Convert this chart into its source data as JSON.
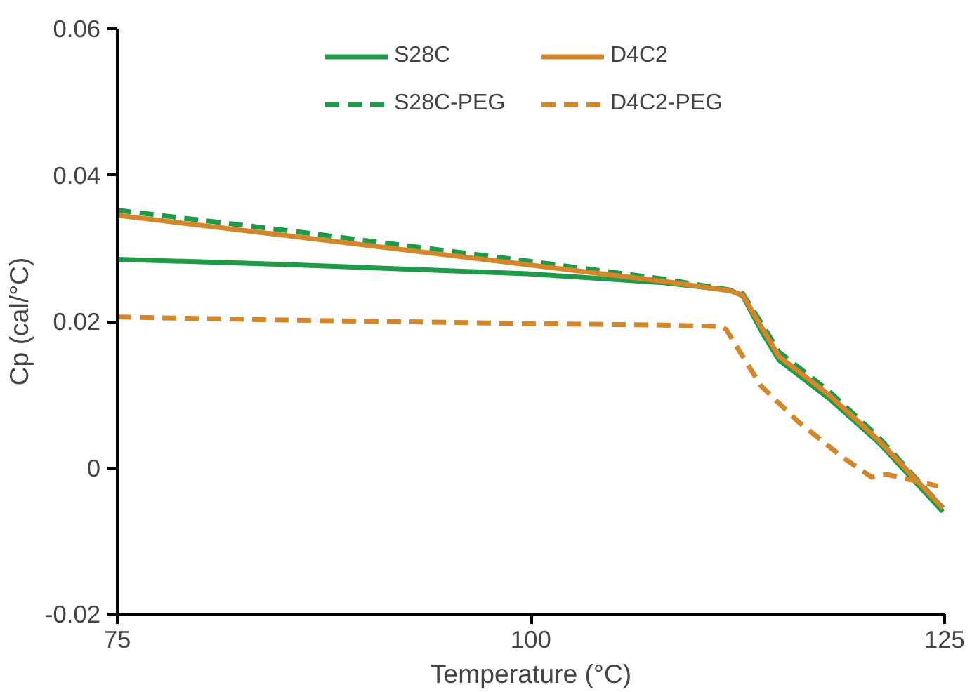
{
  "chart_data": {
    "type": "line",
    "xlabel": "Temperature (°C)",
    "ylabel": "Cp (cal/°C)",
    "xlim": [
      75,
      125
    ],
    "ylim": [
      -0.02,
      0.06
    ],
    "xticks": [
      75,
      100,
      125
    ],
    "yticks": [
      {
        "value": -0.02,
        "label": "-0.02"
      },
      {
        "value": 0,
        "label": "0"
      },
      {
        "value": 0.02,
        "label": "0.02"
      },
      {
        "value": 0.04,
        "label": "0.04"
      },
      {
        "value": 0.06,
        "label": "0.06"
      }
    ],
    "grid": false,
    "legend": "top",
    "marker": "none",
    "series": [
      {
        "name": "S28C",
        "color": "#1e9a48",
        "line_style": "solid",
        "x": [
          75,
          85,
          100,
          108,
          112,
          112.8,
          114,
          115,
          118,
          121,
          124.9
        ],
        "values": [
          0.0285,
          0.0278,
          0.0265,
          0.0253,
          0.0243,
          0.0235,
          0.0184,
          0.0147,
          0.0095,
          0.0035,
          -0.006
        ]
      },
      {
        "name": "S28C-PEG",
        "color": "#1e9a48",
        "line_style": "dashed",
        "x": [
          75,
          85,
          100,
          108,
          112,
          112.8,
          114,
          115,
          118,
          121,
          124.9
        ],
        "values": [
          0.0352,
          0.0325,
          0.0282,
          0.0258,
          0.0243,
          0.0238,
          0.0195,
          0.0158,
          0.0105,
          0.0042,
          -0.0055
        ]
      },
      {
        "name": "D4C2",
        "color": "#d4862a",
        "line_style": "solid",
        "x": [
          75,
          85,
          100,
          108,
          112,
          112.8,
          114,
          115,
          118,
          121,
          124.9
        ],
        "values": [
          0.0345,
          0.0318,
          0.0277,
          0.0255,
          0.0242,
          0.0236,
          0.019,
          0.0152,
          0.01,
          0.0038,
          -0.0055
        ]
      },
      {
        "name": "D4C2-PEG",
        "color": "#d4862a",
        "line_style": "dashed",
        "x": [
          75,
          85,
          100,
          108,
          111.5,
          111.8,
          113.9,
          116.1,
          118.8,
          120.6,
          121.5,
          123.6,
          124.6
        ],
        "values": [
          0.0206,
          0.0202,
          0.0197,
          0.0195,
          0.0193,
          0.0189,
          0.0112,
          0.0064,
          0.0015,
          -0.0013,
          -0.0009,
          -0.002,
          -0.0025
        ]
      }
    ]
  }
}
